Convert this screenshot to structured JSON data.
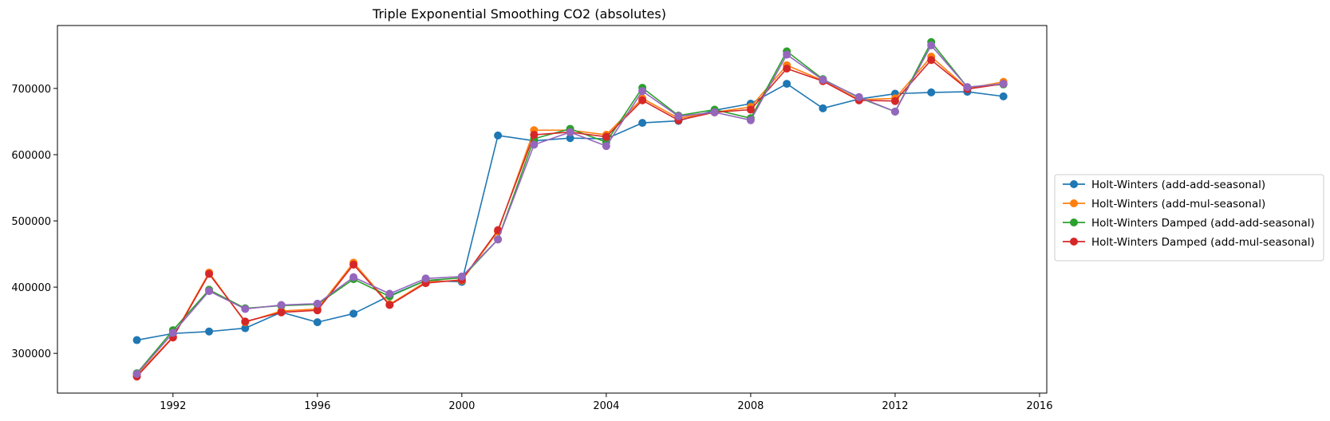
{
  "chart_data": {
    "type": "line",
    "title": "Triple Exponential Smoothing CO2 (absolutes)",
    "xlabel": "",
    "ylabel": "",
    "x": [
      1991,
      1992,
      1993,
      1994,
      1995,
      1996,
      1997,
      1998,
      1999,
      2000,
      2001,
      2002,
      2003,
      2004,
      2005,
      2006,
      2007,
      2008,
      2009,
      2010,
      2011,
      2012,
      2013,
      2014,
      2015
    ],
    "xlim": [
      1988.8,
      2016.2
    ],
    "ylim": [
      240000,
      795000
    ],
    "xticks": [
      1992,
      1996,
      2000,
      2004,
      2008,
      2012,
      2016
    ],
    "yticks": [
      300000,
      400000,
      500000,
      600000,
      700000
    ],
    "grid": false,
    "legend_position": "center-right-outside",
    "series": [
      {
        "name": "Holt-Winters (add-add-seasonal)",
        "color": "#1f77b4",
        "values": [
          320000,
          330000,
          333000,
          338000,
          362000,
          347000,
          360000,
          387000,
          410000,
          408000,
          629000,
          621000,
          625000,
          624000,
          648000,
          651000,
          667000,
          677000,
          707000,
          670000,
          684000,
          692000,
          694000,
          695000,
          688000
        ]
      },
      {
        "name": "Holt-Winters (add-mul-seasonal)",
        "color": "#ff7f0e",
        "values": [
          267000,
          325000,
          422000,
          347000,
          364000,
          367000,
          437000,
          374000,
          408000,
          410000,
          484000,
          637000,
          637000,
          630000,
          685000,
          655000,
          664000,
          672000,
          735000,
          712000,
          683000,
          685000,
          748000,
          700000,
          710000
        ]
      },
      {
        "name": "Holt-Winters Damped (add-add-seasonal)",
        "color": "#2ca02c",
        "values": [
          270000,
          335000,
          396000,
          368000,
          372000,
          374000,
          412000,
          386000,
          410000,
          414000,
          472000,
          624000,
          639000,
          619000,
          701000,
          659000,
          668000,
          655000,
          756000,
          714000,
          686000,
          665000,
          770000,
          702000,
          706000
        ]
      },
      {
        "name": "Holt-Winters Damped (add-mul-seasonal)",
        "color": "#d62728",
        "values": [
          265000,
          324000,
          420000,
          348000,
          362000,
          365000,
          434000,
          373000,
          406000,
          411000,
          486000,
          630000,
          634000,
          627000,
          682000,
          652000,
          664000,
          668000,
          730000,
          711000,
          682000,
          681000,
          743000,
          699000,
          707000
        ]
      },
      {
        "name": "",
        "color": "#9467bd",
        "values": [
          269000,
          331000,
          394000,
          367000,
          373000,
          375000,
          415000,
          390000,
          413000,
          416000,
          472000,
          615000,
          634000,
          613000,
          696000,
          658000,
          664000,
          652000,
          751000,
          713000,
          687000,
          665000,
          765000,
          702000,
          707000
        ]
      }
    ]
  }
}
